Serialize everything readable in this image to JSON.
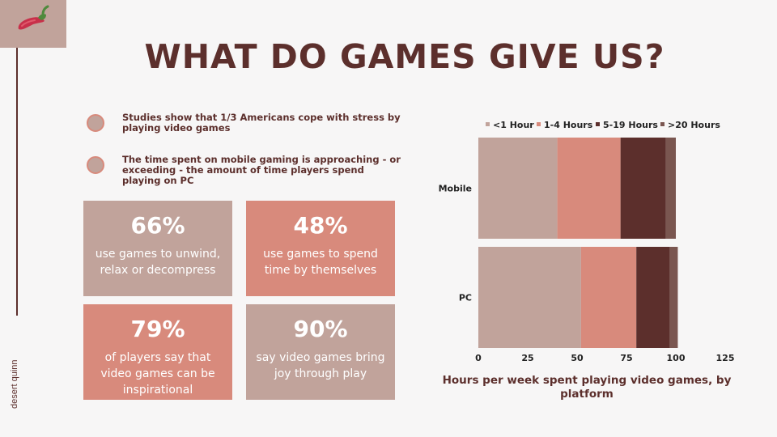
{
  "header": {
    "title": "WHAT DO GAMES GIVE US?"
  },
  "brand": {
    "name": "desert quinn"
  },
  "bullets": [
    {
      "text": "Studies show that 1/3 Americans cope with stress by playing video games"
    },
    {
      "text": "The time spent on mobile gaming is approaching - or exceeding - the amount of time players spend playing on PC"
    }
  ],
  "stats": [
    {
      "value": "66%",
      "label": "use games to unwind, relax or decompress"
    },
    {
      "value": "48%",
      "label": "use games to spend time by themselves"
    },
    {
      "value": "79%",
      "label": "of players say that video games can be inspirational"
    },
    {
      "value": "90%",
      "label": "say video games bring joy through play"
    }
  ],
  "colors": {
    "rose": "#c1a39b",
    "coral": "#d88a7c",
    "maroon": "#5c2f2c",
    "taupe": "#7a5650"
  },
  "chart_data": {
    "type": "bar",
    "orientation": "horizontal",
    "stacked": true,
    "title": "Hours per week spent playing video games, by platform",
    "categories": [
      "Mobile",
      "PC"
    ],
    "series": [
      {
        "name": "<1 Hour",
        "values": [
          40,
          52
        ],
        "color": "#c1a39b"
      },
      {
        "name": "1-4 Hours",
        "values": [
          32,
          28
        ],
        "color": "#d88a7c"
      },
      {
        "name": "5-19 Hours",
        "values": [
          23,
          17
        ],
        "color": "#5c2f2c"
      },
      {
        "name": ">20 Hours",
        "values": [
          5,
          4
        ],
        "color": "#7a5650"
      }
    ],
    "xlim": [
      0,
      125
    ],
    "xticks": [
      "0",
      "25",
      "50",
      "75",
      "100",
      "125"
    ],
    "legend": "top",
    "grid": false
  }
}
